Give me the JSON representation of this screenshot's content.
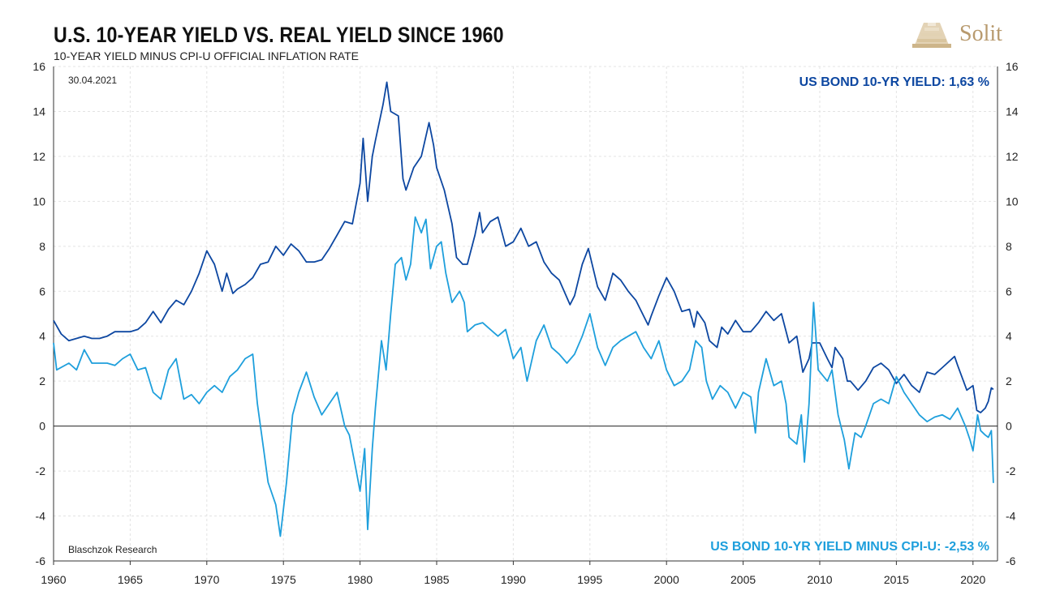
{
  "header": {
    "title": "U.S. 10-YEAR YIELD VS. REAL YIELD SINCE 1960",
    "subtitle": "10-YEAR YIELD MINUS  CPI-U OFFICIAL  INFLATION RATE"
  },
  "brand": {
    "name": "Solit",
    "color": "#b89a6e"
  },
  "chart_data": {
    "type": "line",
    "date_label": "30.04.2021",
    "source": "Blaschzok Research",
    "xlim": [
      1960,
      2021.6
    ],
    "ylim": [
      -6,
      16
    ],
    "x_ticks": [
      "1960",
      "1965",
      "1970",
      "1975",
      "1980",
      "1985",
      "1990",
      "1995",
      "2000",
      "2005",
      "2010",
      "2015",
      "2020"
    ],
    "y_ticks": [
      "-6",
      "-4",
      "-2",
      "0",
      "2",
      "4",
      "6",
      "8",
      "10",
      "12",
      "14",
      "16"
    ],
    "grid": true,
    "series": [
      {
        "name": "US BOND 10-YR YIELD: 1,63 %",
        "color": "#0d47a1",
        "points": [
          [
            1960.0,
            4.7
          ],
          [
            1960.5,
            4.1
          ],
          [
            1961.0,
            3.8
          ],
          [
            1961.5,
            3.9
          ],
          [
            1962.0,
            4.0
          ],
          [
            1962.5,
            3.9
          ],
          [
            1963.0,
            3.9
          ],
          [
            1963.5,
            4.0
          ],
          [
            1964.0,
            4.2
          ],
          [
            1964.5,
            4.2
          ],
          [
            1965.0,
            4.2
          ],
          [
            1965.5,
            4.3
          ],
          [
            1966.0,
            4.6
          ],
          [
            1966.5,
            5.1
          ],
          [
            1967.0,
            4.6
          ],
          [
            1967.5,
            5.2
          ],
          [
            1968.0,
            5.6
          ],
          [
            1968.5,
            5.4
          ],
          [
            1969.0,
            6.0
          ],
          [
            1969.5,
            6.8
          ],
          [
            1970.0,
            7.8
          ],
          [
            1970.5,
            7.2
          ],
          [
            1971.0,
            6.0
          ],
          [
            1971.3,
            6.8
          ],
          [
            1971.7,
            5.9
          ],
          [
            1972.0,
            6.1
          ],
          [
            1972.5,
            6.3
          ],
          [
            1973.0,
            6.6
          ],
          [
            1973.5,
            7.2
          ],
          [
            1974.0,
            7.3
          ],
          [
            1974.5,
            8.0
          ],
          [
            1975.0,
            7.6
          ],
          [
            1975.5,
            8.1
          ],
          [
            1976.0,
            7.8
          ],
          [
            1976.5,
            7.3
          ],
          [
            1977.0,
            7.3
          ],
          [
            1977.5,
            7.4
          ],
          [
            1978.0,
            7.9
          ],
          [
            1978.5,
            8.5
          ],
          [
            1979.0,
            9.1
          ],
          [
            1979.5,
            9.0
          ],
          [
            1980.0,
            10.8
          ],
          [
            1980.2,
            12.8
          ],
          [
            1980.5,
            10.0
          ],
          [
            1980.8,
            12.0
          ],
          [
            1981.0,
            12.7
          ],
          [
            1981.5,
            14.3
          ],
          [
            1981.75,
            15.3
          ],
          [
            1982.0,
            14.0
          ],
          [
            1982.5,
            13.8
          ],
          [
            1982.8,
            11.0
          ],
          [
            1983.0,
            10.5
          ],
          [
            1983.5,
            11.5
          ],
          [
            1984.0,
            12.0
          ],
          [
            1984.5,
            13.5
          ],
          [
            1984.8,
            12.5
          ],
          [
            1985.0,
            11.5
          ],
          [
            1985.5,
            10.5
          ],
          [
            1986.0,
            9.0
          ],
          [
            1986.3,
            7.5
          ],
          [
            1986.7,
            7.2
          ],
          [
            1987.0,
            7.2
          ],
          [
            1987.5,
            8.5
          ],
          [
            1987.8,
            9.5
          ],
          [
            1988.0,
            8.6
          ],
          [
            1988.5,
            9.1
          ],
          [
            1989.0,
            9.3
          ],
          [
            1989.5,
            8.0
          ],
          [
            1990.0,
            8.2
          ],
          [
            1990.5,
            8.8
          ],
          [
            1991.0,
            8.0
          ],
          [
            1991.5,
            8.2
          ],
          [
            1992.0,
            7.3
          ],
          [
            1992.5,
            6.8
          ],
          [
            1993.0,
            6.5
          ],
          [
            1993.7,
            5.4
          ],
          [
            1994.0,
            5.8
          ],
          [
            1994.5,
            7.2
          ],
          [
            1994.9,
            7.9
          ],
          [
            1995.5,
            6.2
          ],
          [
            1996.0,
            5.6
          ],
          [
            1996.5,
            6.8
          ],
          [
            1997.0,
            6.5
          ],
          [
            1997.5,
            6.0
          ],
          [
            1998.0,
            5.6
          ],
          [
            1998.8,
            4.5
          ],
          [
            1999.0,
            4.9
          ],
          [
            1999.5,
            5.8
          ],
          [
            2000.0,
            6.6
          ],
          [
            2000.5,
            6.0
          ],
          [
            2001.0,
            5.1
          ],
          [
            2001.5,
            5.2
          ],
          [
            2001.8,
            4.4
          ],
          [
            2002.0,
            5.1
          ],
          [
            2002.5,
            4.6
          ],
          [
            2002.8,
            3.8
          ],
          [
            2003.3,
            3.5
          ],
          [
            2003.6,
            4.4
          ],
          [
            2004.0,
            4.1
          ],
          [
            2004.5,
            4.7
          ],
          [
            2005.0,
            4.2
          ],
          [
            2005.5,
            4.2
          ],
          [
            2006.0,
            4.6
          ],
          [
            2006.5,
            5.1
          ],
          [
            2007.0,
            4.7
          ],
          [
            2007.5,
            5.0
          ],
          [
            2008.0,
            3.7
          ],
          [
            2008.5,
            4.0
          ],
          [
            2008.9,
            2.4
          ],
          [
            2009.3,
            3.0
          ],
          [
            2009.5,
            3.7
          ],
          [
            2010.0,
            3.7
          ],
          [
            2010.5,
            3.0
          ],
          [
            2010.8,
            2.6
          ],
          [
            2011.0,
            3.5
          ],
          [
            2011.5,
            3.0
          ],
          [
            2011.8,
            2.0
          ],
          [
            2012.0,
            2.0
          ],
          [
            2012.5,
            1.6
          ],
          [
            2013.0,
            2.0
          ],
          [
            2013.5,
            2.6
          ],
          [
            2014.0,
            2.8
          ],
          [
            2014.5,
            2.5
          ],
          [
            2015.0,
            1.9
          ],
          [
            2015.5,
            2.3
          ],
          [
            2016.0,
            1.8
          ],
          [
            2016.5,
            1.5
          ],
          [
            2017.0,
            2.4
          ],
          [
            2017.5,
            2.3
          ],
          [
            2018.0,
            2.6
          ],
          [
            2018.8,
            3.1
          ],
          [
            2019.0,
            2.7
          ],
          [
            2019.6,
            1.6
          ],
          [
            2020.0,
            1.8
          ],
          [
            2020.25,
            0.7
          ],
          [
            2020.5,
            0.6
          ],
          [
            2020.8,
            0.8
          ],
          [
            2021.0,
            1.1
          ],
          [
            2021.2,
            1.7
          ],
          [
            2021.33,
            1.63
          ]
        ]
      },
      {
        "name": "US BOND 10-YR YIELD MINUS CPI-U:  -2,53 %",
        "color": "#1e9fdc",
        "points": [
          [
            1960.0,
            3.7
          ],
          [
            1960.2,
            2.5
          ],
          [
            1961.0,
            2.8
          ],
          [
            1961.5,
            2.5
          ],
          [
            1962.0,
            3.4
          ],
          [
            1962.5,
            2.8
          ],
          [
            1963.0,
            2.8
          ],
          [
            1963.5,
            2.8
          ],
          [
            1964.0,
            2.7
          ],
          [
            1964.5,
            3.0
          ],
          [
            1965.0,
            3.2
          ],
          [
            1965.5,
            2.5
          ],
          [
            1966.0,
            2.6
          ],
          [
            1966.5,
            1.5
          ],
          [
            1967.0,
            1.2
          ],
          [
            1967.5,
            2.5
          ],
          [
            1968.0,
            3.0
          ],
          [
            1968.5,
            1.2
          ],
          [
            1969.0,
            1.4
          ],
          [
            1969.5,
            1.0
          ],
          [
            1970.0,
            1.5
          ],
          [
            1970.5,
            1.8
          ],
          [
            1971.0,
            1.5
          ],
          [
            1971.5,
            2.2
          ],
          [
            1972.0,
            2.5
          ],
          [
            1972.5,
            3.0
          ],
          [
            1973.0,
            3.2
          ],
          [
            1973.3,
            1.0
          ],
          [
            1973.7,
            -1.0
          ],
          [
            1974.0,
            -2.5
          ],
          [
            1974.5,
            -3.5
          ],
          [
            1974.8,
            -4.9
          ],
          [
            1975.2,
            -2.5
          ],
          [
            1975.6,
            0.5
          ],
          [
            1976.0,
            1.5
          ],
          [
            1976.5,
            2.4
          ],
          [
            1977.0,
            1.3
          ],
          [
            1977.5,
            0.5
          ],
          [
            1978.0,
            1.0
          ],
          [
            1978.5,
            1.5
          ],
          [
            1979.0,
            0.0
          ],
          [
            1979.3,
            -0.4
          ],
          [
            1979.7,
            -1.8
          ],
          [
            1980.0,
            -2.9
          ],
          [
            1980.3,
            -1.0
          ],
          [
            1980.5,
            -4.6
          ],
          [
            1980.8,
            -1.0
          ],
          [
            1981.0,
            0.8
          ],
          [
            1981.4,
            3.8
          ],
          [
            1981.7,
            2.5
          ],
          [
            1982.0,
            5.0
          ],
          [
            1982.3,
            7.2
          ],
          [
            1982.7,
            7.5
          ],
          [
            1983.0,
            6.5
          ],
          [
            1983.3,
            7.2
          ],
          [
            1983.6,
            9.3
          ],
          [
            1984.0,
            8.6
          ],
          [
            1984.3,
            9.2
          ],
          [
            1984.6,
            7.0
          ],
          [
            1985.0,
            8.0
          ],
          [
            1985.3,
            8.2
          ],
          [
            1985.6,
            6.8
          ],
          [
            1986.0,
            5.5
          ],
          [
            1986.5,
            6.0
          ],
          [
            1986.8,
            5.5
          ],
          [
            1987.0,
            4.2
          ],
          [
            1987.5,
            4.5
          ],
          [
            1988.0,
            4.6
          ],
          [
            1988.5,
            4.3
          ],
          [
            1989.0,
            4.0
          ],
          [
            1989.5,
            4.3
          ],
          [
            1990.0,
            3.0
          ],
          [
            1990.5,
            3.5
          ],
          [
            1990.9,
            2.0
          ],
          [
            1991.5,
            3.8
          ],
          [
            1992.0,
            4.5
          ],
          [
            1992.5,
            3.5
          ],
          [
            1993.0,
            3.2
          ],
          [
            1993.5,
            2.8
          ],
          [
            1994.0,
            3.2
          ],
          [
            1994.5,
            4.0
          ],
          [
            1995.0,
            5.0
          ],
          [
            1995.5,
            3.5
          ],
          [
            1996.0,
            2.7
          ],
          [
            1996.5,
            3.5
          ],
          [
            1997.0,
            3.8
          ],
          [
            1997.5,
            4.0
          ],
          [
            1998.0,
            4.2
          ],
          [
            1998.5,
            3.5
          ],
          [
            1999.0,
            3.0
          ],
          [
            1999.5,
            3.8
          ],
          [
            2000.0,
            2.5
          ],
          [
            2000.5,
            1.8
          ],
          [
            2001.0,
            2.0
          ],
          [
            2001.5,
            2.5
          ],
          [
            2001.9,
            3.8
          ],
          [
            2002.3,
            3.5
          ],
          [
            2002.6,
            2.0
          ],
          [
            2003.0,
            1.2
          ],
          [
            2003.5,
            1.8
          ],
          [
            2004.0,
            1.5
          ],
          [
            2004.5,
            0.8
          ],
          [
            2005.0,
            1.5
          ],
          [
            2005.5,
            1.3
          ],
          [
            2005.8,
            -0.3
          ],
          [
            2006.0,
            1.5
          ],
          [
            2006.5,
            3.0
          ],
          [
            2007.0,
            1.8
          ],
          [
            2007.5,
            2.0
          ],
          [
            2007.8,
            1.0
          ],
          [
            2008.0,
            -0.5
          ],
          [
            2008.5,
            -0.8
          ],
          [
            2008.8,
            0.5
          ],
          [
            2009.0,
            -1.6
          ],
          [
            2009.3,
            1.0
          ],
          [
            2009.6,
            5.5
          ],
          [
            2009.9,
            2.5
          ],
          [
            2010.5,
            2.0
          ],
          [
            2010.8,
            2.5
          ],
          [
            2011.2,
            0.5
          ],
          [
            2011.6,
            -0.6
          ],
          [
            2011.9,
            -1.9
          ],
          [
            2012.3,
            -0.3
          ],
          [
            2012.7,
            -0.5
          ],
          [
            2013.0,
            0.0
          ],
          [
            2013.5,
            1.0
          ],
          [
            2014.0,
            1.2
          ],
          [
            2014.5,
            1.0
          ],
          [
            2015.0,
            2.2
          ],
          [
            2015.5,
            1.5
          ],
          [
            2016.0,
            1.0
          ],
          [
            2016.5,
            0.5
          ],
          [
            2017.0,
            0.2
          ],
          [
            2017.5,
            0.4
          ],
          [
            2018.0,
            0.5
          ],
          [
            2018.5,
            0.3
          ],
          [
            2019.0,
            0.8
          ],
          [
            2019.5,
            0.0
          ],
          [
            2019.8,
            -0.6
          ],
          [
            2020.0,
            -1.1
          ],
          [
            2020.3,
            0.5
          ],
          [
            2020.5,
            -0.2
          ],
          [
            2020.8,
            -0.4
          ],
          [
            2021.0,
            -0.5
          ],
          [
            2021.2,
            -0.2
          ],
          [
            2021.33,
            -2.53
          ]
        ]
      }
    ]
  }
}
